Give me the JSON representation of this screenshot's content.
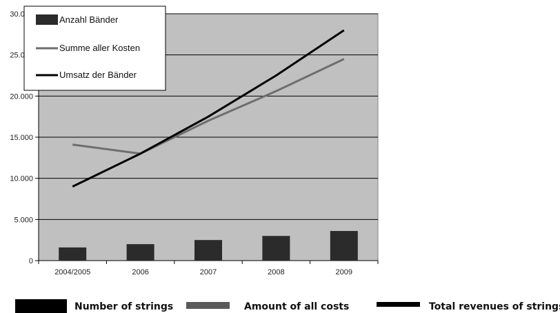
{
  "chart_data": {
    "type": "bar",
    "categories": [
      "2004/2005",
      "2006",
      "2007",
      "2008",
      "2009"
    ],
    "ylim": [
      0,
      30000
    ],
    "yticks": [
      "0",
      "5.000",
      "10.000",
      "15.000",
      "20.000",
      "25.000",
      "30.000"
    ],
    "grid": true,
    "legend_position": "top-left",
    "series": [
      {
        "name": "Anzahl Bänder",
        "type": "bar",
        "color": "#2b2b2b",
        "values": [
          1600,
          2000,
          2500,
          3000,
          3600
        ]
      },
      {
        "name": "Summe aller Kosten",
        "type": "line",
        "color": "#6e6e6e",
        "values": [
          14100,
          13000,
          17000,
          20600,
          24500
        ]
      },
      {
        "name": "Umsatz der Bänder",
        "type": "line",
        "color": "#000000",
        "values": [
          9000,
          13000,
          17500,
          22500,
          28000
        ]
      }
    ],
    "english_legend": [
      "Number of strings",
      "Amount of all costs",
      "Total revenues of strings"
    ]
  }
}
